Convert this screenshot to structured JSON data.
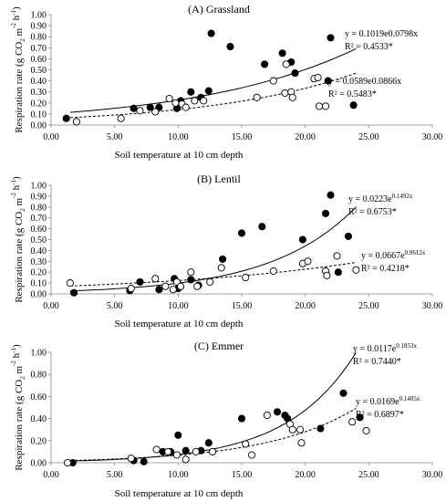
{
  "chart_data": [
    {
      "type": "scatter",
      "title": "(A) Grassland",
      "xlabel": "Soil temperature at 10 cm depth",
      "ylabel": "Respiration rate",
      "ylabel_unit_parts": [
        "(g CO",
        "2",
        " m",
        "-2",
        " h",
        "-1",
        ")"
      ],
      "xlim": [
        0,
        30
      ],
      "ylim": [
        0,
        1
      ],
      "xticks": [
        "0.00",
        "5.00",
        "10.00",
        "15.00",
        "20.00",
        "25.00",
        "30.00"
      ],
      "yticks": [
        "0.00",
        "0.10",
        "0.20",
        "0.30",
        "0.40",
        "0.50",
        "0.60",
        "0.70",
        "0.80",
        "0.90",
        "1.00"
      ],
      "series": [
        {
          "marker": "filled",
          "fit_style": "solid",
          "fit": {
            "a": 0.1019,
            "b": 0.0798
          },
          "equation_parts": [
            "y = 0.1019e0.0798x"
          ],
          "r2": "R² = 0.4533*",
          "points": [
            [
              1.2,
              0.06
            ],
            [
              6.5,
              0.15
            ],
            [
              7.8,
              0.16
            ],
            [
              8.5,
              0.16
            ],
            [
              9.9,
              0.15
            ],
            [
              10.2,
              0.22
            ],
            [
              11.0,
              0.3
            ],
            [
              11.8,
              0.25
            ],
            [
              12.4,
              0.31
            ],
            [
              12.6,
              0.83
            ],
            [
              14.1,
              0.71
            ],
            [
              16.8,
              0.55
            ],
            [
              18.2,
              0.65
            ],
            [
              18.9,
              0.57
            ],
            [
              19.2,
              0.47
            ],
            [
              22.0,
              0.79
            ],
            [
              21.8,
              0.4
            ],
            [
              23.8,
              0.18
            ]
          ]
        },
        {
          "marker": "open",
          "fit_style": "dashed",
          "fit": {
            "a": 0.0589,
            "b": 0.0866
          },
          "equation_parts": [
            "y = 0.0589e0.0866x"
          ],
          "r2": "R² = 0.5483*",
          "points": [
            [
              2.0,
              0.03
            ],
            [
              5.5,
              0.06
            ],
            [
              7.0,
              0.13
            ],
            [
              8.2,
              0.12
            ],
            [
              9.3,
              0.24
            ],
            [
              9.8,
              0.2
            ],
            [
              10.3,
              0.19
            ],
            [
              10.6,
              0.16
            ],
            [
              11.3,
              0.22
            ],
            [
              12.0,
              0.22
            ],
            [
              16.2,
              0.25
            ],
            [
              17.5,
              0.4
            ],
            [
              18.4,
              0.29
            ],
            [
              18.5,
              0.55
            ],
            [
              18.9,
              0.3
            ],
            [
              19.0,
              0.25
            ],
            [
              20.7,
              0.42
            ],
            [
              21.0,
              0.43
            ],
            [
              21.1,
              0.17
            ],
            [
              21.6,
              0.17
            ]
          ]
        }
      ]
    },
    {
      "type": "scatter",
      "title": "(B) Lentil",
      "xlabel": "Soil temperature at 10 cm depth",
      "ylabel": "Respiration rate",
      "ylabel_unit_parts": [
        "(g CO",
        "2",
        " m",
        "-2",
        " h",
        "-1",
        ")"
      ],
      "xlim": [
        0,
        30
      ],
      "ylim": [
        0,
        1
      ],
      "xticks": [
        "0.00",
        "5.00",
        "10.00",
        "15.00",
        "20.00",
        "25.00",
        "30.00"
      ],
      "yticks": [
        "0.00",
        "0.10",
        "0.20",
        "0.30",
        "0.40",
        "0.50",
        "0.60",
        "0.70",
        "0.80",
        "0.90",
        "1.00"
      ],
      "series": [
        {
          "marker": "filled",
          "fit_style": "solid",
          "fit": {
            "a": 0.0223,
            "b": 0.1492
          },
          "equation_parts": [
            "y = 0.0223e",
            "0.1492x"
          ],
          "r2": "R² = 0.6753*",
          "points": [
            [
              1.8,
              0.01
            ],
            [
              6.2,
              0.03
            ],
            [
              7.0,
              0.11
            ],
            [
              8.5,
              0.04
            ],
            [
              9.7,
              0.14
            ],
            [
              10.0,
              0.05
            ],
            [
              11.0,
              0.13
            ],
            [
              11.6,
              0.08
            ],
            [
              13.5,
              0.32
            ],
            [
              15.0,
              0.56
            ],
            [
              16.6,
              0.62
            ],
            [
              19.8,
              0.5
            ],
            [
              21.6,
              0.74
            ],
            [
              22.0,
              0.91
            ],
            [
              22.6,
              0.2
            ],
            [
              23.4,
              0.53
            ]
          ]
        },
        {
          "marker": "open",
          "fit_style": "dashed",
          "fit": {
            "a": 0.0667,
            "b": 0.0612
          },
          "equation_parts": [
            "y = 0.0667e",
            "0.0612x"
          ],
          "r2": "R² = 0.4218*",
          "points": [
            [
              1.5,
              0.1
            ],
            [
              6.3,
              0.05
            ],
            [
              8.2,
              0.14
            ],
            [
              9.0,
              0.07
            ],
            [
              9.6,
              0.04
            ],
            [
              9.9,
              0.11
            ],
            [
              10.2,
              0.07
            ],
            [
              11.0,
              0.2
            ],
            [
              11.5,
              0.07
            ],
            [
              12.5,
              0.11
            ],
            [
              13.4,
              0.24
            ],
            [
              15.3,
              0.15
            ],
            [
              17.5,
              0.21
            ],
            [
              19.8,
              0.28
            ],
            [
              20.2,
              0.3
            ],
            [
              21.6,
              0.21
            ],
            [
              21.7,
              0.17
            ],
            [
              22.5,
              0.35
            ],
            [
              24.0,
              0.22
            ]
          ]
        }
      ]
    },
    {
      "type": "scatter",
      "title": "(C) Emmer",
      "xlabel": "Soil temperature at 10 cm depth",
      "ylabel": "Respiration rate",
      "ylabel_unit_parts": [
        "(g CO",
        "2",
        " m",
        "-2",
        " h",
        "-1",
        ")"
      ],
      "xlim": [
        0,
        30
      ],
      "ylim": [
        0,
        1
      ],
      "xticks": [
        "0.00",
        "5.00",
        "10.00",
        "15.00",
        "20.00",
        "25.00",
        "30.00"
      ],
      "yticks": [
        "0.00",
        "0.20",
        "0.40",
        "0.60",
        "0.80",
        "1.00"
      ],
      "series": [
        {
          "marker": "filled",
          "fit_style": "solid",
          "fit": {
            "a": 0.0117,
            "b": 0.1853
          },
          "equation_parts": [
            "y = 0.0117e",
            "0.1853x"
          ],
          "r2": "R² = 0.7440*",
          "points": [
            [
              1.7,
              0.0
            ],
            [
              6.5,
              0.02
            ],
            [
              7.3,
              0.01
            ],
            [
              8.8,
              0.1
            ],
            [
              9.4,
              0.1
            ],
            [
              10.0,
              0.25
            ],
            [
              10.6,
              0.11
            ],
            [
              11.8,
              0.11
            ],
            [
              12.4,
              0.18
            ],
            [
              15.0,
              0.4
            ],
            [
              17.8,
              0.46
            ],
            [
              18.4,
              0.43
            ],
            [
              18.6,
              0.4
            ],
            [
              21.2,
              0.31
            ],
            [
              23.0,
              0.63
            ],
            [
              24.3,
              0.41
            ]
          ]
        },
        {
          "marker": "open",
          "fit_style": "dashed",
          "fit": {
            "a": 0.0169,
            "b": 0.1405
          },
          "equation_parts": [
            "y = 0.0169e",
            "0.1405x"
          ],
          "r2": "R² = 0.6897*",
          "points": [
            [
              1.3,
              0.0
            ],
            [
              6.3,
              0.04
            ],
            [
              8.3,
              0.12
            ],
            [
              9.2,
              0.1
            ],
            [
              9.9,
              0.07
            ],
            [
              10.6,
              0.03
            ],
            [
              11.4,
              0.1
            ],
            [
              12.7,
              0.1
            ],
            [
              15.3,
              0.17
            ],
            [
              15.8,
              0.07
            ],
            [
              17.0,
              0.43
            ],
            [
              18.8,
              0.35
            ],
            [
              19.0,
              0.3
            ],
            [
              19.6,
              0.3
            ],
            [
              19.7,
              0.18
            ],
            [
              23.7,
              0.37
            ],
            [
              24.8,
              0.29
            ]
          ]
        }
      ]
    }
  ]
}
